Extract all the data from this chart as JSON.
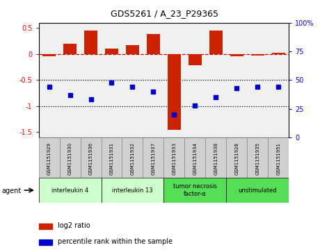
{
  "title": "GDS5261 / A_23_P29365",
  "samples": [
    "GSM1151929",
    "GSM1151930",
    "GSM1151936",
    "GSM1151931",
    "GSM1151932",
    "GSM1151937",
    "GSM1151933",
    "GSM1151934",
    "GSM1151938",
    "GSM1151928",
    "GSM1151935",
    "GSM1151951"
  ],
  "log2_ratio": [
    -0.05,
    0.2,
    0.45,
    0.1,
    0.17,
    0.38,
    -1.45,
    -0.22,
    0.45,
    -0.04,
    -0.03,
    0.02
  ],
  "percentile_rank": [
    44,
    37,
    33,
    48,
    44,
    40,
    20,
    28,
    35,
    43,
    44,
    44
  ],
  "group_configs": [
    {
      "label": "interleukin 4",
      "cols": [
        0,
        1,
        2
      ],
      "color": "#ccffcc"
    },
    {
      "label": "interleukin 13",
      "cols": [
        3,
        4,
        5
      ],
      "color": "#ccffcc"
    },
    {
      "label": "tumor necrosis\nfactor-α",
      "cols": [
        6,
        7,
        8
      ],
      "color": "#55dd55"
    },
    {
      "label": "unstimulated",
      "cols": [
        9,
        10,
        11
      ],
      "color": "#55dd55"
    }
  ],
  "ylim_left": [
    -1.6,
    0.6
  ],
  "ylim_right": [
    0,
    100
  ],
  "bar_color": "#cc2200",
  "dot_color": "#0000cc",
  "plot_bg": "#f0f0f0",
  "hline_color": "#cc0000",
  "dotted_color": "#000000",
  "agent_label": "agent",
  "legend_bar": "log2 ratio",
  "legend_dot": "percentile rank within the sample",
  "left_yticks": [
    0.5,
    0.0,
    -0.5,
    -1.0,
    -1.5
  ],
  "left_yticklabels": [
    "0.5",
    "0",
    "-0.5",
    "-1",
    "-1.5"
  ],
  "right_yticks": [
    0,
    25,
    50,
    75,
    100
  ],
  "right_yticklabels": [
    "0",
    "25",
    "50",
    "75",
    "100%"
  ]
}
